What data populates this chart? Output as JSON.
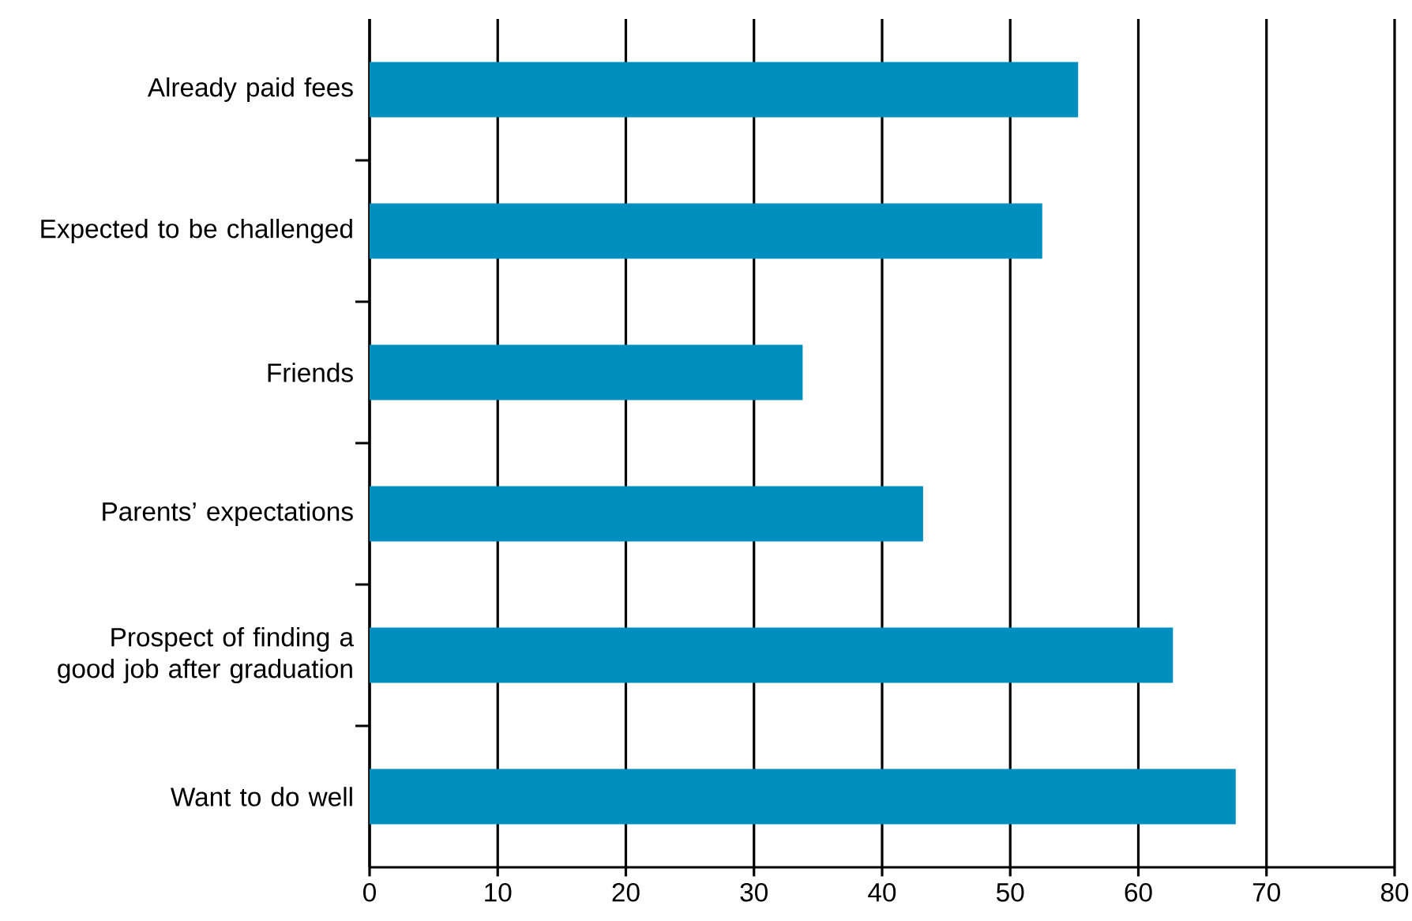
{
  "chart_data": {
    "type": "bar",
    "orientation": "horizontal",
    "categories": [
      "Already paid fees",
      "Expected to be challenged",
      "Friends",
      "Parents’ expectations",
      "Prospect of finding a good job after graduation",
      "Want to do well"
    ],
    "values": [
      55.3,
      52.5,
      33.8,
      43.2,
      62.7,
      67.6
    ],
    "color": "#008fbf",
    "xlim": [
      0,
      80
    ],
    "xticks": [
      0,
      10,
      20,
      30,
      40,
      50,
      60,
      70,
      80
    ],
    "grid": "x"
  }
}
